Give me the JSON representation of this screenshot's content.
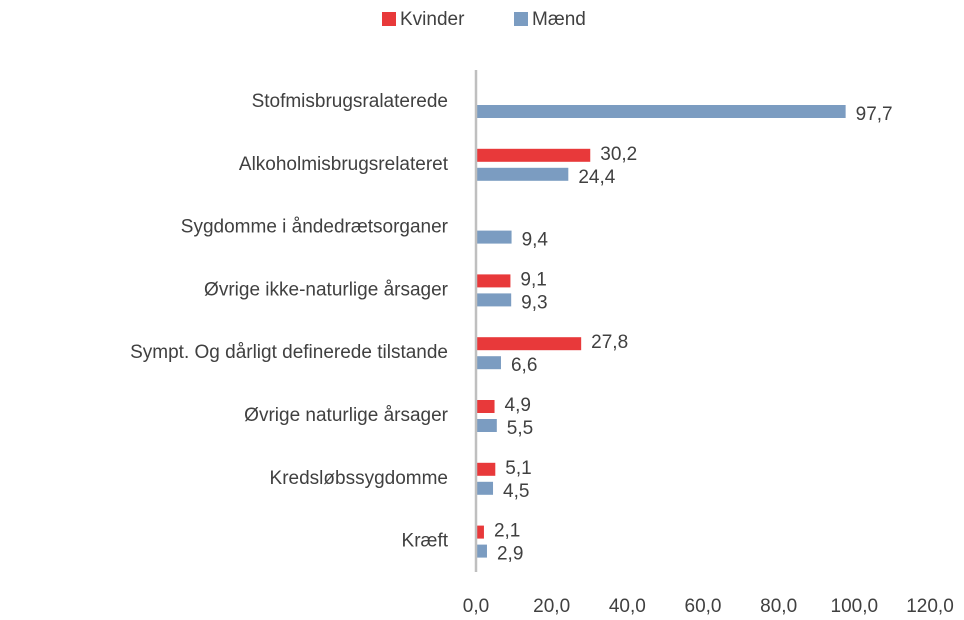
{
  "chart_data": {
    "type": "hbar",
    "categories": [
      "Stofmisbrugsralaterede",
      "Alkoholmisbrugsrelateret",
      "Sygdomme i åndedrætsorganer",
      "Øvrige ikke-naturlige årsager",
      "Sympt. Og dårligt definerede tilstande",
      "Øvrige naturlige årsager",
      "Kredsløbssygdomme",
      "Kræft"
    ],
    "series": [
      {
        "name": "Kvinder",
        "color": "#e8393a",
        "values": [
          null,
          30.2,
          null,
          9.1,
          27.8,
          4.9,
          5.1,
          2.1
        ],
        "value_labels": [
          null,
          "30,2",
          null,
          "9,1",
          "27,8",
          "4,9",
          "5,1",
          "2,1"
        ]
      },
      {
        "name": "Mænd",
        "color": "#7b9cc1",
        "values": [
          97.7,
          24.4,
          9.4,
          9.3,
          6.6,
          5.5,
          4.5,
          2.9
        ],
        "value_labels": [
          "97,7",
          "24,4",
          "9,4",
          "9,3",
          "6,6",
          "5,5",
          "4,5",
          "2,9"
        ]
      }
    ],
    "xlim": [
      0,
      120
    ],
    "xticks": [
      {
        "value": 0,
        "label": "0,0"
      },
      {
        "value": 20,
        "label": "20,0"
      },
      {
        "value": 40,
        "label": "40,0"
      },
      {
        "value": 60,
        "label": "60,0"
      },
      {
        "value": 80,
        "label": "80,0"
      },
      {
        "value": 100,
        "label": "100,0"
      },
      {
        "value": 120,
        "label": "120,0"
      }
    ],
    "legend": "top"
  }
}
